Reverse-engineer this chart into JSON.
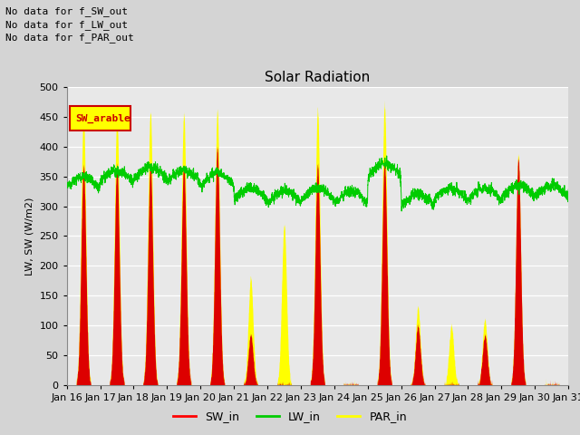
{
  "title": "Solar Radiation",
  "ylabel": "LW, SW (W/m2)",
  "ylim": [
    0,
    500
  ],
  "no_data_texts": [
    "No data for f_SW_out",
    "No data for f_LW_out",
    "No data for f_PAR_out"
  ],
  "sw_arable_label": "SW_arable",
  "legend_labels": [
    "SW_in",
    "LW_in",
    "PAR_in"
  ],
  "legend_colors": [
    "#ff0000",
    "#00cc00",
    "#ffff00"
  ],
  "background_color": "#d8d8d8",
  "plot_bg_color": "#e8e8e8",
  "grid_color": "#ffffff",
  "lw_base": 320,
  "sw_peak": 390,
  "par_peak": 460,
  "day_peaks": {
    "0": {
      "sw": 370,
      "par": 455,
      "lw_base": 330,
      "clear": true
    },
    "1": {
      "sw": 370,
      "par": 450,
      "lw_base": 340,
      "clear": true
    },
    "2": {
      "sw": 370,
      "par": 458,
      "lw_base": 345,
      "clear": true
    },
    "3": {
      "sw": 370,
      "par": 455,
      "lw_base": 340,
      "clear": true
    },
    "4": {
      "sw": 400,
      "par": 460,
      "lw_base": 335,
      "clear": true
    },
    "5": {
      "sw": 85,
      "par": 180,
      "lw_base": 310,
      "clear": false
    },
    "6": {
      "sw": 0,
      "par": 270,
      "lw_base": 305,
      "clear": false
    },
    "7": {
      "sw": 370,
      "par": 462,
      "lw_base": 310,
      "clear": true
    },
    "8": {
      "sw": 0,
      "par": 0,
      "lw_base": 305,
      "clear": false
    },
    "9": {
      "sw": 380,
      "par": 470,
      "lw_base": 350,
      "clear": true
    },
    "10": {
      "sw": 100,
      "par": 130,
      "lw_base": 300,
      "clear": false
    },
    "11": {
      "sw": 0,
      "par": 100,
      "lw_base": 310,
      "clear": false
    },
    "12": {
      "sw": 85,
      "par": 110,
      "lw_base": 310,
      "clear": false
    },
    "13": {
      "sw": 380,
      "par": 385,
      "lw_base": 315,
      "clear": true
    },
    "14": {
      "sw": 0,
      "par": 0,
      "lw_base": 315,
      "clear": false
    }
  }
}
